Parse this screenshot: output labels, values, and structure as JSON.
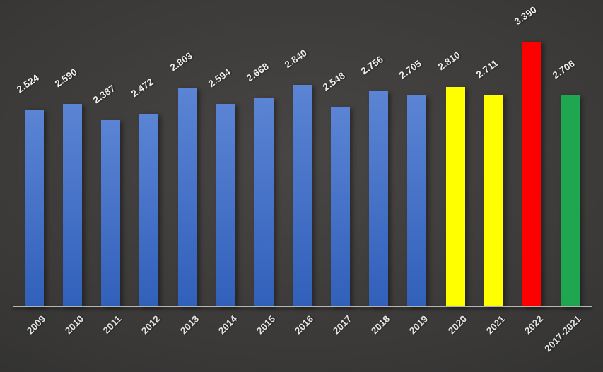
{
  "chart_data": {
    "type": "bar",
    "title": "",
    "xlabel": "",
    "ylabel": "",
    "ylim": [
      0,
      3.39
    ],
    "grid": false,
    "legend": false,
    "categories": [
      "2009",
      "2010",
      "2011",
      "2012",
      "2013",
      "2014",
      "2015",
      "2016",
      "2017",
      "2018",
      "2019",
      "2020",
      "2021",
      "2022",
      "2017-2021"
    ],
    "values": [
      2.524,
      2.59,
      2.387,
      2.472,
      2.803,
      2.594,
      2.668,
      2.84,
      2.548,
      2.756,
      2.705,
      2.81,
      2.711,
      3.39,
      2.706
    ],
    "value_labels": [
      "2.524",
      "2.590",
      "2.387",
      "2.472",
      "2.803",
      "2.594",
      "2.668",
      "2.840",
      "2.548",
      "2.756",
      "2.705",
      "2.810",
      "2.711",
      "3.390",
      "2.706"
    ],
    "bar_colors": [
      "blue",
      "blue",
      "blue",
      "blue",
      "blue",
      "blue",
      "blue",
      "blue",
      "blue",
      "blue",
      "blue",
      "yellow",
      "yellow",
      "red",
      "green"
    ]
  },
  "colors": {
    "blue_top": "#5b84d4",
    "blue_bottom": "#3160ba",
    "yellow": "#ffff00",
    "red": "#fe0000",
    "green": "#1ea750",
    "axis_line": "#b5b5b5",
    "data_label": "#efefef",
    "axis_label": "#e2e2e2",
    "bg_center": "#484644",
    "bg_edge": "#282828"
  }
}
